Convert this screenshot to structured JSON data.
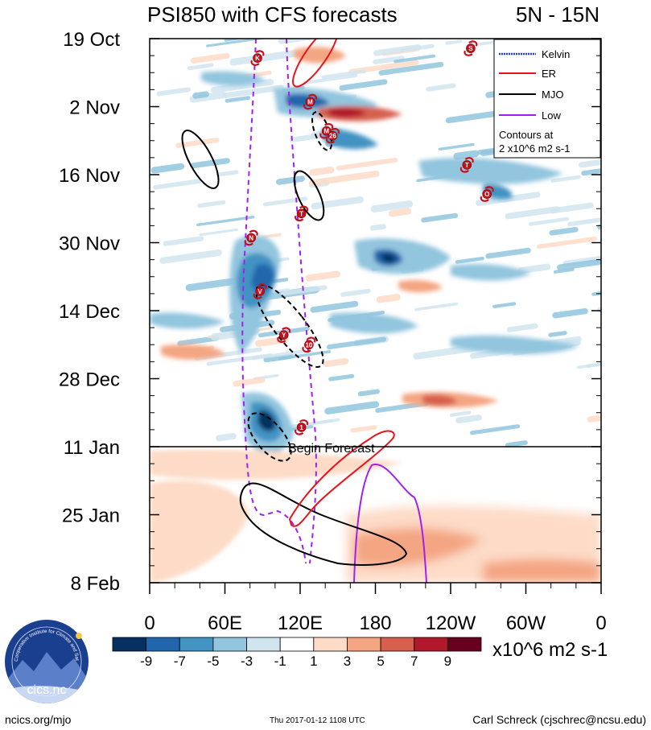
{
  "header": {
    "title": "PSI850 with CFS forecasts",
    "region": "5N - 15N"
  },
  "chart_data": {
    "type": "heatmap",
    "title": "PSI850 with CFS forecasts",
    "region": "5N - 15N",
    "y_axis": {
      "type": "time",
      "labels": [
        "19 Oct",
        "2 Nov",
        "16 Nov",
        "30 Nov",
        "14 Dec",
        "28 Dec",
        "11 Jan",
        "25 Jan",
        "8 Feb"
      ],
      "range": [
        "2016-10-19",
        "2017-02-08"
      ]
    },
    "x_axis": {
      "type": "longitude",
      "labels": [
        "0",
        "60E",
        "120E",
        "180",
        "120W",
        "60W",
        "0"
      ],
      "range": [
        0,
        360
      ]
    },
    "colorbar": {
      "values": [
        "-9",
        "-7",
        "-5",
        "-3",
        "-1",
        "1",
        "3",
        "5",
        "7",
        "9"
      ],
      "colors": [
        "#053061",
        "#2166ac",
        "#4393c3",
        "#92c5de",
        "#d1e5f0",
        "#ffffff",
        "#fddbc7",
        "#f4a582",
        "#d6604d",
        "#b2182b",
        "#67001f"
      ],
      "units": "x10^6 m2 s-1"
    },
    "forecast_line": {
      "date": "11 Jan",
      "label": "Begin Forecast"
    },
    "legend": {
      "entries": [
        {
          "name": "Kelvin",
          "color": "#1f3fdc"
        },
        {
          "name": "ER",
          "color": "#e8141c"
        },
        {
          "name": "MJO",
          "color": "#000000"
        },
        {
          "name": "Low",
          "color": "#a020f0"
        }
      ],
      "note_line1": "Contours at",
      "note_line2": "2 x10^6 m2 s-1"
    },
    "storms": [
      {
        "label": "K",
        "lon": 86,
        "date": "23 Oct"
      },
      {
        "label": "S",
        "lon": 256,
        "date": "21 Oct"
      },
      {
        "label": "M",
        "lon": 128,
        "date": "1 Nov"
      },
      {
        "label": "M",
        "lon": 141,
        "date": "7 Nov"
      },
      {
        "label": "26",
        "lon": 146,
        "date": "8 Nov"
      },
      {
        "label": "T",
        "lon": 253,
        "date": "14 Nov"
      },
      {
        "label": "O",
        "lon": 269,
        "date": "20 Nov"
      },
      {
        "label": "T",
        "lon": 121,
        "date": "24 Nov"
      },
      {
        "label": "N",
        "lon": 81,
        "date": "29 Nov"
      },
      {
        "label": "V",
        "lon": 88,
        "date": "10 Dec"
      },
      {
        "label": "Y",
        "lon": 107,
        "date": "19 Dec"
      },
      {
        "label": "10",
        "lon": 127,
        "date": "21 Dec"
      },
      {
        "label": "1",
        "lon": 121,
        "date": "7 Jan"
      }
    ]
  },
  "footer": {
    "logo_text": "cics.nc",
    "logo_ring_text": "Cooperative Institute for Climate and Satellites",
    "url": "ncics.org/mjo",
    "timestamp": "Thu 2017-01-12 1108 UTC",
    "author": "Carl Schreck (cjschrec@ncsu.edu)"
  }
}
